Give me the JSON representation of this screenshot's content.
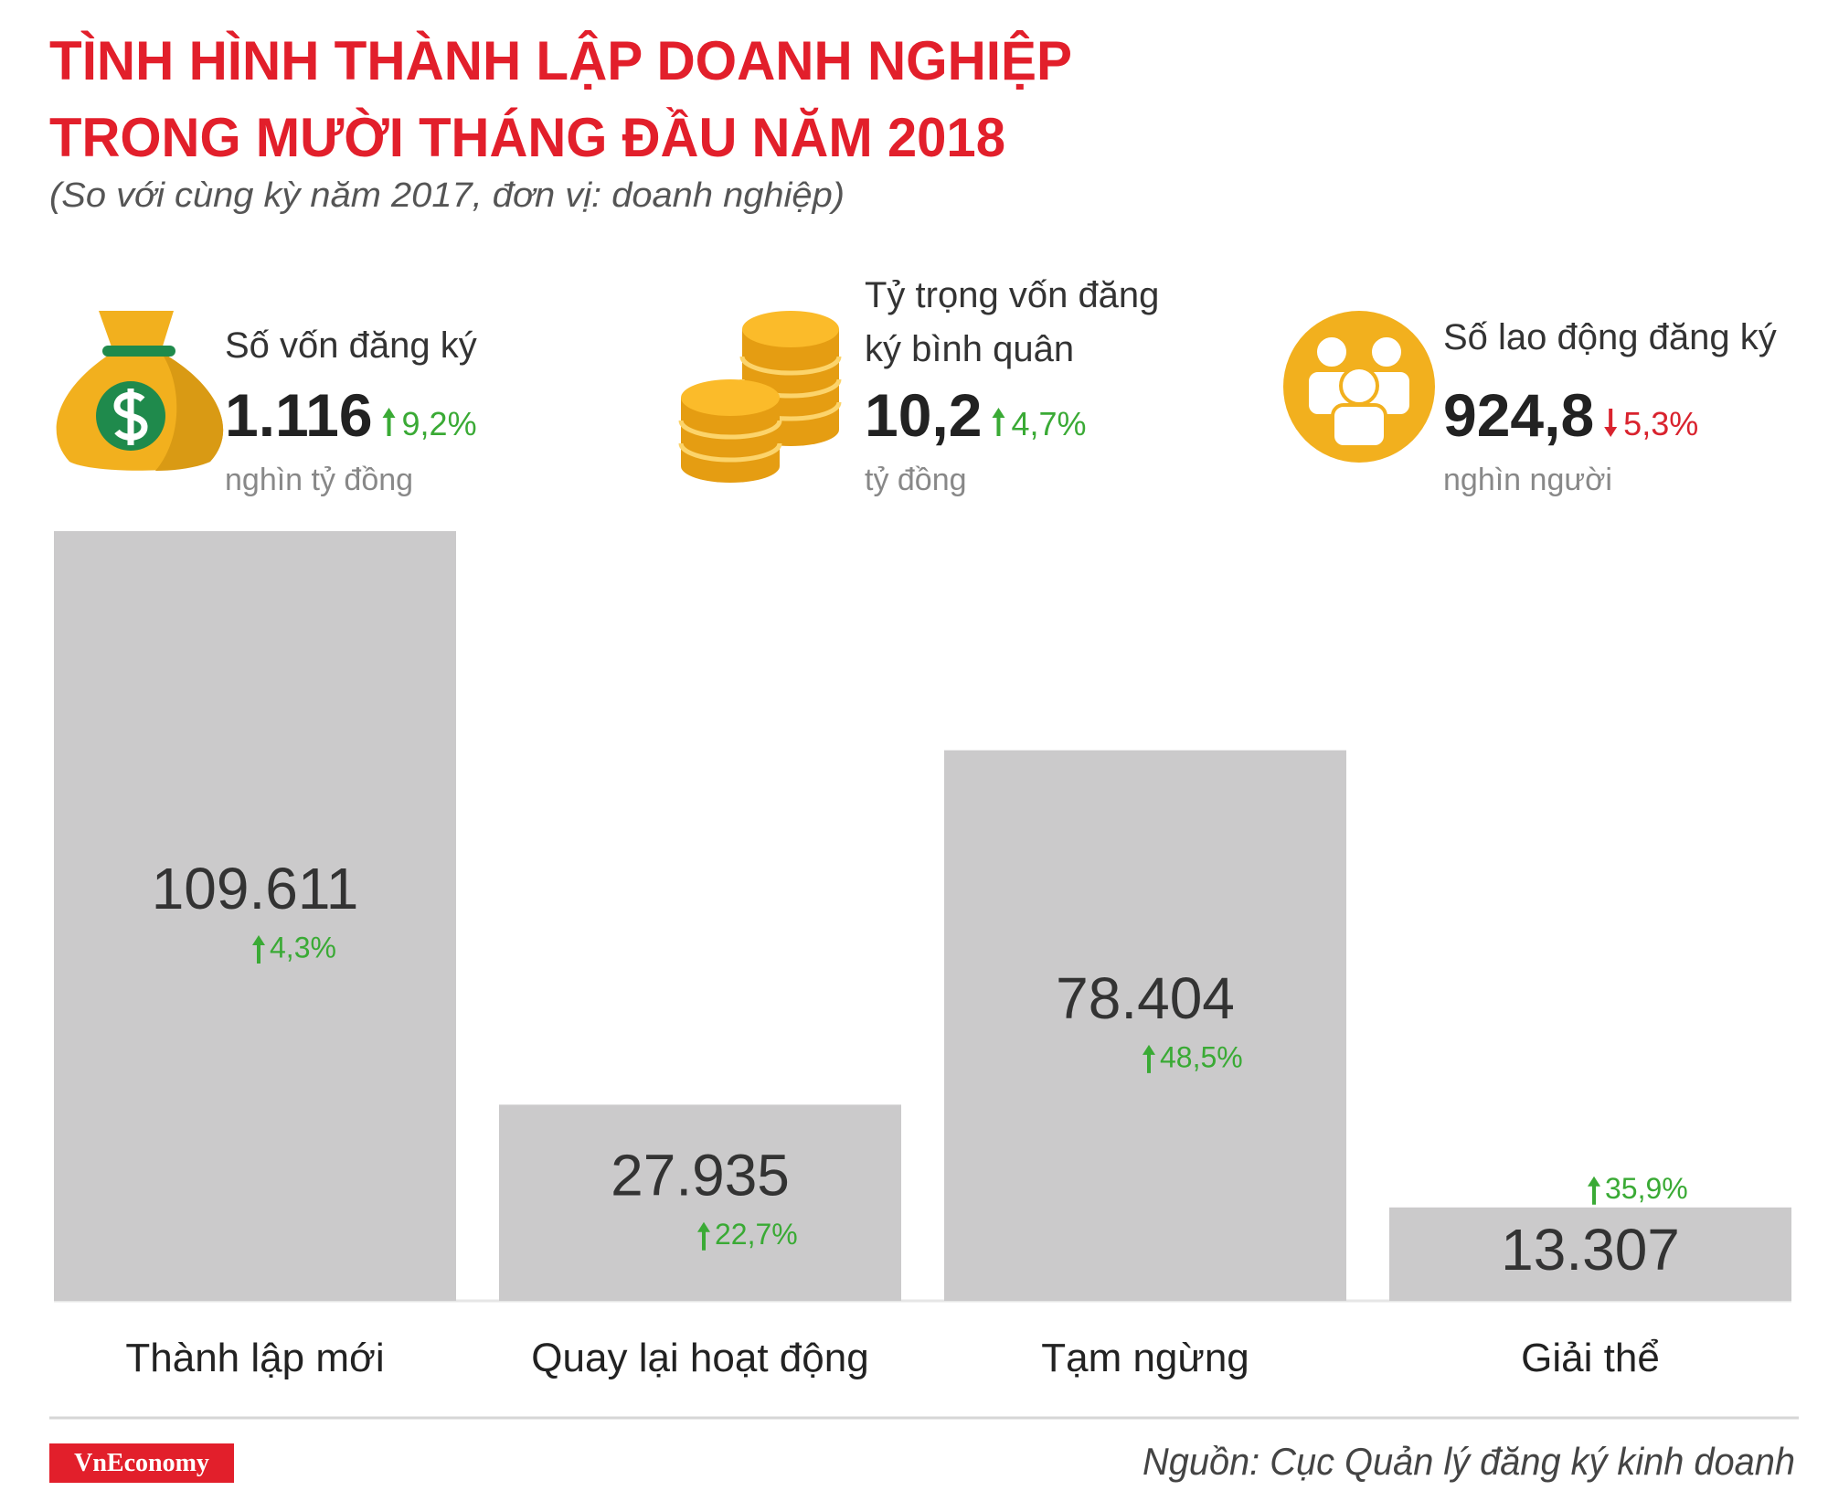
{
  "header": {
    "title": [
      "TÌNH HÌNH THÀNH LẬP DOANH NGHIỆP",
      "TRONG MƯỜI THÁNG ĐẦU NĂM 2018"
    ],
    "subtitle": "(So với cùng kỳ năm 2017, đơn vị: doanh nghiệp)"
  },
  "stats": [
    {
      "label": [
        "Số vốn đăng ký"
      ],
      "value": "1.116",
      "change": "9,2%",
      "direction": "up",
      "unit": "nghìn tỷ đồng"
    },
    {
      "label": [
        "Tỷ trọng vốn đăng",
        "ký bình quân"
      ],
      "value": "10,2",
      "change": "4,7%",
      "direction": "up",
      "unit": "tỷ đồng"
    },
    {
      "label": [
        "Số lao động đăng ký"
      ],
      "value": "924,8",
      "change": "5,3%",
      "direction": "down",
      "unit": "nghìn người"
    }
  ],
  "chart_data": {
    "type": "bar",
    "categories": [
      "Thành lập mới",
      "Quay lại hoạt động",
      "Tạm ngừng",
      "Giải thể"
    ],
    "values": [
      109611,
      27935,
      78404,
      13307
    ],
    "value_labels": [
      "109.611",
      "27.935",
      "78.404",
      "13.307"
    ],
    "changes": [
      4.3,
      22.7,
      48.5,
      35.9
    ],
    "change_labels": [
      "4,3%",
      "22,7%",
      "48,5%",
      "35,9%"
    ],
    "color": "#cbcacb"
  },
  "footer": {
    "logo": "VnEconomy",
    "source": "Nguồn: Cục Quản lý đăng ký kinh doanh"
  }
}
